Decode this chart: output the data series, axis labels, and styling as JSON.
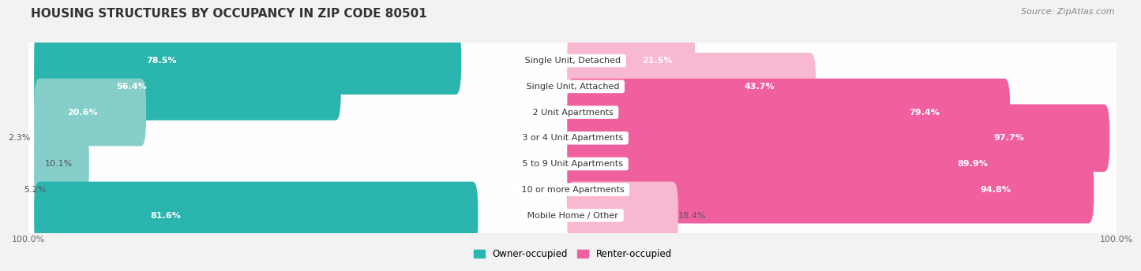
{
  "title": "HOUSING STRUCTURES BY OCCUPANCY IN ZIP CODE 80501",
  "source": "Source: ZipAtlas.com",
  "categories": [
    "Single Unit, Detached",
    "Single Unit, Attached",
    "2 Unit Apartments",
    "3 or 4 Unit Apartments",
    "5 to 9 Unit Apartments",
    "10 or more Apartments",
    "Mobile Home / Other"
  ],
  "owner_pct": [
    78.5,
    56.4,
    20.6,
    2.3,
    10.1,
    5.2,
    81.6
  ],
  "renter_pct": [
    21.5,
    43.7,
    79.4,
    97.7,
    89.9,
    94.8,
    18.4
  ],
  "owner_color_strong": "#2ab5ae",
  "owner_color_light": "#85ceca",
  "renter_color_strong": "#f0609e",
  "renter_color_light": "#f8b8d2",
  "background_color": "#f2f2f2",
  "row_bg_color": "#e8e8e8",
  "title_fontsize": 11,
  "source_fontsize": 8,
  "label_fontsize": 8,
  "pct_fontsize": 8,
  "bar_height": 0.62,
  "legend_fontsize": 8.5,
  "owner_label_threshold": 12,
  "renter_label_inside_threshold": 20
}
